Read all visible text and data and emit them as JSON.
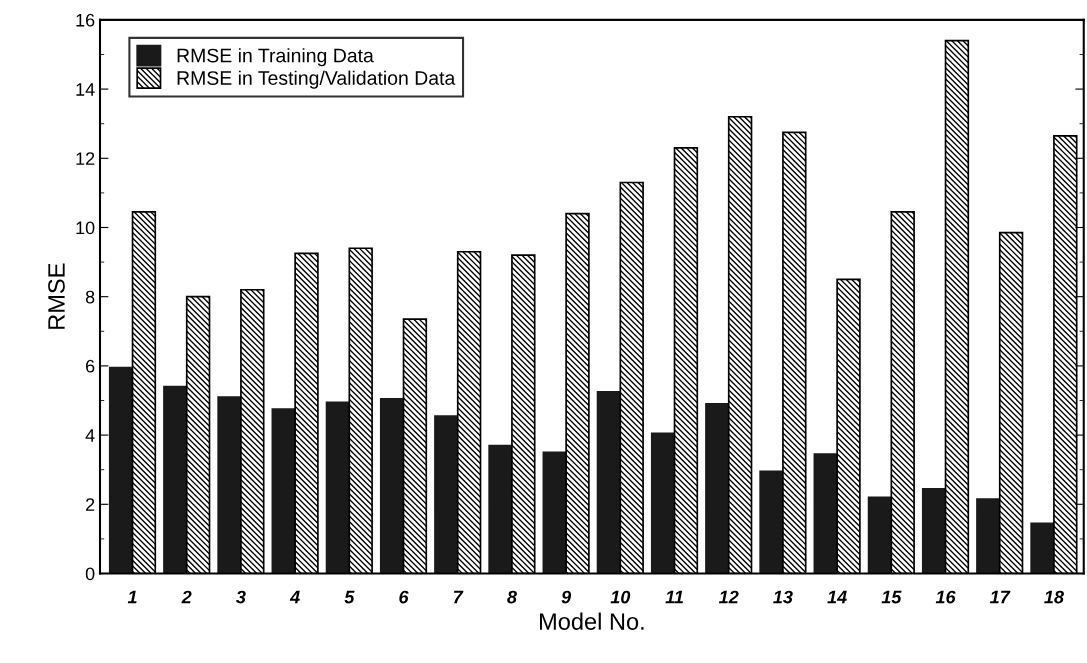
{
  "chart_data": {
    "type": "bar",
    "xlabel": "Model No.",
    "ylabel": "RMSE",
    "categories": [
      "1",
      "2",
      "3",
      "4",
      "5",
      "6",
      "7",
      "8",
      "9",
      "10",
      "11",
      "12",
      "13",
      "14",
      "15",
      "16",
      "17",
      "18"
    ],
    "series": [
      {
        "name": "RMSE in Training Data",
        "color": "#1a1a1a",
        "values": [
          5.95,
          5.4,
          5.1,
          4.75,
          4.95,
          5.05,
          4.55,
          3.7,
          3.5,
          5.25,
          4.05,
          4.9,
          2.95,
          3.45,
          2.2,
          2.45,
          2.15,
          1.45
        ]
      },
      {
        "name": "RMSE in Testing/Validation Data",
        "color": "#000000",
        "values": [
          10.45,
          8.0,
          8.2,
          9.25,
          9.4,
          7.35,
          9.3,
          9.2,
          10.4,
          11.3,
          12.3,
          13.2,
          12.75,
          8.5,
          10.45,
          15.4,
          9.85,
          12.65
        ]
      }
    ],
    "ylim": [
      0,
      16
    ],
    "yticks": [
      0,
      2,
      4,
      6,
      8,
      10,
      12,
      14,
      16
    ],
    "grid": false,
    "legend": "top left"
  }
}
